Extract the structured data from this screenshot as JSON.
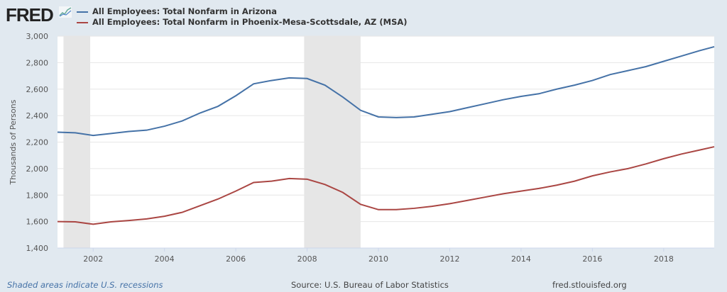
{
  "logo": "FRED",
  "footer": {
    "note": "Shaded areas indicate U.S. recessions",
    "source": "Source: U.S. Bureau of Labor Statistics",
    "site": "fred.stlouisfed.org"
  },
  "chart_data": {
    "type": "line",
    "ylabel": "Thousands of Persons",
    "ylim": [
      1400,
      3000
    ],
    "yticks": [
      "1,400",
      "1,600",
      "1,800",
      "2,000",
      "2,200",
      "2,400",
      "2,600",
      "2,800",
      "3,000"
    ],
    "xticks": [
      "2002",
      "2004",
      "2006",
      "2008",
      "2010",
      "2012",
      "2014",
      "2016",
      "2018"
    ],
    "xlim": [
      "2001-01",
      "2019-06"
    ],
    "grid": true,
    "legend": "top-left",
    "recessions": [
      [
        "2001-03",
        "2001-11"
      ],
      [
        "2007-12",
        "2009-06"
      ]
    ],
    "x": [
      "2001-01",
      "2001-07",
      "2002-01",
      "2002-07",
      "2003-01",
      "2003-07",
      "2004-01",
      "2004-07",
      "2005-01",
      "2005-07",
      "2006-01",
      "2006-07",
      "2007-01",
      "2007-07",
      "2008-01",
      "2008-07",
      "2009-01",
      "2009-07",
      "2010-01",
      "2010-07",
      "2011-01",
      "2011-07",
      "2012-01",
      "2012-07",
      "2013-01",
      "2013-07",
      "2014-01",
      "2014-07",
      "2015-01",
      "2015-07",
      "2016-01",
      "2016-07",
      "2017-01",
      "2017-07",
      "2018-01",
      "2018-07",
      "2019-01",
      "2019-06"
    ],
    "series": [
      {
        "name": "All Employees: Total Nonfarm in Arizona",
        "color": "#4572a7",
        "values": [
          2275,
          2270,
          2250,
          2265,
          2280,
          2290,
          2320,
          2360,
          2420,
          2470,
          2550,
          2640,
          2665,
          2685,
          2680,
          2630,
          2540,
          2440,
          2390,
          2385,
          2390,
          2410,
          2430,
          2460,
          2490,
          2520,
          2545,
          2565,
          2600,
          2630,
          2665,
          2710,
          2740,
          2770,
          2810,
          2850,
          2890,
          2920
        ]
      },
      {
        "name": "All Employees: Total Nonfarm in Phoenix-Mesa-Scottsdale, AZ (MSA)",
        "color": "#aa4643",
        "values": [
          1600,
          1598,
          1580,
          1598,
          1608,
          1620,
          1640,
          1670,
          1720,
          1770,
          1830,
          1895,
          1905,
          1925,
          1920,
          1880,
          1820,
          1730,
          1690,
          1690,
          1700,
          1715,
          1735,
          1760,
          1785,
          1810,
          1830,
          1850,
          1875,
          1905,
          1945,
          1975,
          2000,
          2035,
          2075,
          2110,
          2140,
          2165
        ]
      }
    ]
  }
}
